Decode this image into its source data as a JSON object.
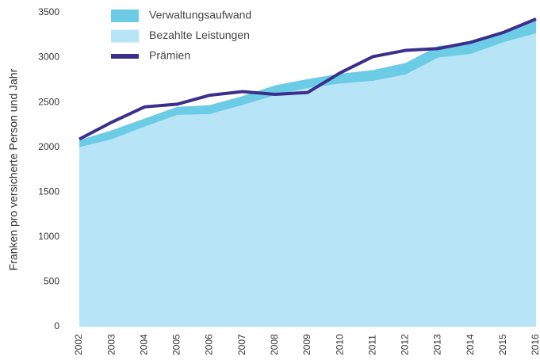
{
  "chart_data": {
    "type": "area",
    "y_label": "Franken pro versicherte Person und Jahr",
    "categories": [
      "2002",
      "2003",
      "2004",
      "2005",
      "2006",
      "2007",
      "2008",
      "2009",
      "2010",
      "2011",
      "2012",
      "2013",
      "2014",
      "2015",
      "2016"
    ],
    "series": [
      {
        "name": "Verwaltungsaufwand",
        "color": "#6ccce6",
        "stacked": true,
        "values": [
          80,
          100,
          90,
          90,
          100,
          100,
          110,
          100,
          110,
          120,
          130,
          130,
          120,
          110,
          150
        ]
      },
      {
        "name": "Bezahlte Leistungen",
        "color": "#b8e4f8",
        "stacked": true,
        "values": [
          2000,
          2090,
          2230,
          2360,
          2370,
          2470,
          2580,
          2660,
          2710,
          2740,
          2810,
          3000,
          3040,
          3170,
          3270
        ]
      },
      {
        "name": "Prämien",
        "color": "#3b2f8c",
        "type": "line",
        "values": [
          2090,
          2280,
          2450,
          2480,
          2580,
          2620,
          2590,
          2610,
          2830,
          3010,
          3080,
          3100,
          3170,
          3280,
          3430
        ]
      }
    ],
    "ylim": [
      0,
      3500
    ],
    "yticks": [
      0,
      500,
      1000,
      1500,
      2000,
      2500,
      3000,
      3500
    ],
    "grid": false
  }
}
